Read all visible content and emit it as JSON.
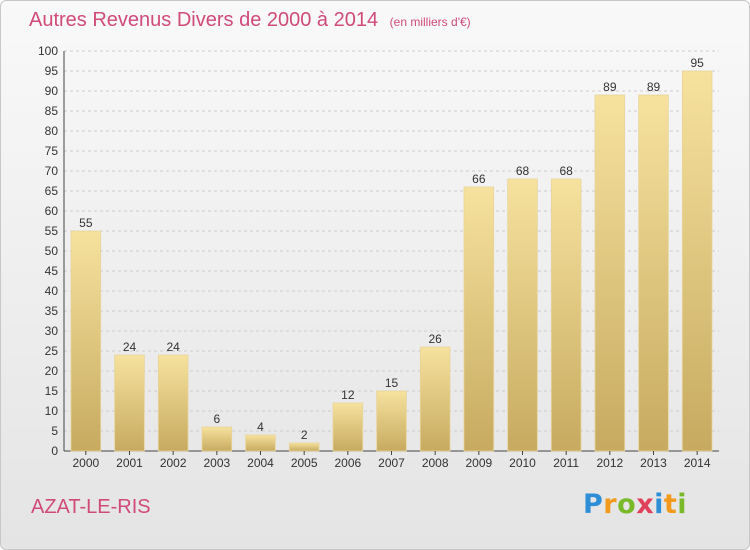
{
  "header": {
    "title": "Autres Revenus Divers de 2000 à 2014",
    "subtitle": "(en milliers d'€)"
  },
  "footer": {
    "location": "AZAT-LE-RIS",
    "brand": "Proxiti",
    "brand_letters": [
      {
        "ch": "P",
        "color": "#2e8fd6"
      },
      {
        "ch": "r",
        "color": "#f29a1c"
      },
      {
        "ch": "o",
        "color": "#7ab929"
      },
      {
        "ch": "x",
        "color": "#e0405a"
      },
      {
        "ch": "i",
        "color": "#2e8fd6"
      },
      {
        "ch": "t",
        "color": "#f29a1c"
      },
      {
        "ch": "i",
        "color": "#7ab929"
      }
    ]
  },
  "colors": {
    "accent": "#d04a7a",
    "bar_top": "#f6e29e",
    "bar_bottom": "#c7aa60",
    "grid": "#cccccc",
    "axis": "#444444"
  },
  "chart_data": {
    "type": "bar",
    "categories": [
      "2000",
      "2001",
      "2002",
      "2003",
      "2004",
      "2005",
      "2006",
      "2007",
      "2008",
      "2009",
      "2010",
      "2011",
      "2012",
      "2013",
      "2014"
    ],
    "values": [
      55,
      24,
      24,
      6,
      4,
      2,
      12,
      15,
      26,
      66,
      68,
      68,
      89,
      89,
      95
    ],
    "ylim": [
      0,
      100
    ],
    "ytick_step": 5,
    "grid": true,
    "data_labels": true
  }
}
